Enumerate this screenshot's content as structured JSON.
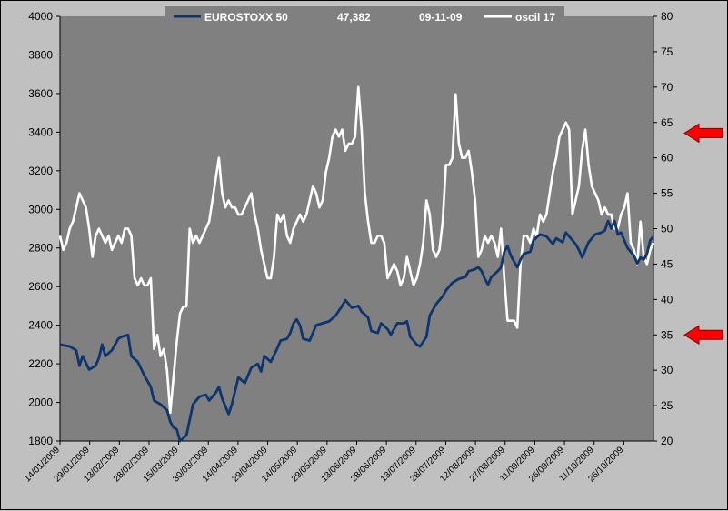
{
  "legend": {
    "series1_label": "EUROSTOXX 50",
    "value": "47,382",
    "date": "09-11-09",
    "series2_label": "oscil 17"
  },
  "colors": {
    "plot_bg": "#808080",
    "page_bg": "#c0c0c0",
    "eurostoxx": "#0d3570",
    "oscil": "#ffffff",
    "arrow": "#ff0000"
  },
  "chart_data": {
    "type": "line",
    "title": "",
    "xlabel": "",
    "ylabel": "",
    "ylim": [
      1800,
      4000
    ],
    "y_ticks": [
      1800,
      2000,
      2200,
      2400,
      2600,
      2800,
      3000,
      3200,
      3400,
      3600,
      3800,
      4000
    ],
    "y2lim": [
      20,
      80
    ],
    "y2_ticks": [
      20,
      25,
      30,
      35,
      40,
      45,
      50,
      55,
      60,
      65,
      70,
      75,
      80
    ],
    "x_tick_labels": [
      "14/01/2009",
      "29/01/2009",
      "13/02/2009",
      "28/02/2009",
      "15/03/2009",
      "30/03/2009",
      "14/04/2009",
      "29/04/2009",
      "14/05/2009",
      "29/05/2009",
      "13/06/2009",
      "28/06/2009",
      "13/07/2009",
      "28/07/2009",
      "12/08/2009",
      "27/08/2009",
      "11/09/2009",
      "26/09/2009",
      "11/10/2009",
      "26/10/2009"
    ],
    "grid": false,
    "legend_position": "top",
    "series": [
      {
        "name": "EUROSTOXX 50",
        "axis": "left",
        "points": [
          [
            0,
            2300
          ],
          [
            3,
            2290
          ],
          [
            5,
            2270
          ],
          [
            6,
            2190
          ],
          [
            7,
            2240
          ],
          [
            9,
            2170
          ],
          [
            11,
            2190
          ],
          [
            12,
            2230
          ],
          [
            13,
            2300
          ],
          [
            14,
            2240
          ],
          [
            16,
            2270
          ],
          [
            18,
            2330
          ],
          [
            19,
            2340
          ],
          [
            21,
            2350
          ],
          [
            22,
            2240
          ],
          [
            24,
            2210
          ],
          [
            26,
            2140
          ],
          [
            28,
            2080
          ],
          [
            29,
            2010
          ],
          [
            31,
            1990
          ],
          [
            33,
            1960
          ],
          [
            34,
            1900
          ],
          [
            35,
            1870
          ],
          [
            36,
            1860
          ],
          [
            37,
            1800
          ],
          [
            39,
            1830
          ],
          [
            41,
            1990
          ],
          [
            43,
            2030
          ],
          [
            45,
            2040
          ],
          [
            46,
            2010
          ],
          [
            48,
            2050
          ],
          [
            49,
            2080
          ],
          [
            50,
            2020
          ],
          [
            52,
            1940
          ],
          [
            53,
            1990
          ],
          [
            55,
            2130
          ],
          [
            57,
            2100
          ],
          [
            59,
            2180
          ],
          [
            61,
            2200
          ],
          [
            62,
            2160
          ],
          [
            63,
            2240
          ],
          [
            65,
            2210
          ],
          [
            67,
            2280
          ],
          [
            68,
            2320
          ],
          [
            70,
            2330
          ],
          [
            71,
            2360
          ],
          [
            72,
            2410
          ],
          [
            73,
            2430
          ],
          [
            74,
            2400
          ],
          [
            75,
            2330
          ],
          [
            77,
            2320
          ],
          [
            79,
            2400
          ],
          [
            81,
            2410
          ],
          [
            83,
            2420
          ],
          [
            85,
            2450
          ],
          [
            87,
            2500
          ],
          [
            88,
            2530
          ],
          [
            90,
            2490
          ],
          [
            92,
            2500
          ],
          [
            93,
            2470
          ],
          [
            95,
            2440
          ],
          [
            96,
            2370
          ],
          [
            98,
            2360
          ],
          [
            99,
            2410
          ],
          [
            101,
            2380
          ],
          [
            102,
            2350
          ],
          [
            104,
            2410
          ],
          [
            106,
            2410
          ],
          [
            107,
            2420
          ],
          [
            108,
            2340
          ],
          [
            110,
            2300
          ],
          [
            111,
            2290
          ],
          [
            113,
            2340
          ],
          [
            114,
            2450
          ],
          [
            116,
            2510
          ],
          [
            118,
            2550
          ],
          [
            119,
            2580
          ],
          [
            121,
            2620
          ],
          [
            123,
            2640
          ],
          [
            125,
            2650
          ],
          [
            126,
            2680
          ],
          [
            128,
            2690
          ],
          [
            129,
            2700
          ],
          [
            130,
            2680
          ],
          [
            131,
            2640
          ],
          [
            132,
            2610
          ],
          [
            133,
            2650
          ],
          [
            135,
            2680
          ],
          [
            136,
            2700
          ],
          [
            137,
            2780
          ],
          [
            138,
            2810
          ],
          [
            139,
            2760
          ],
          [
            141,
            2700
          ],
          [
            142,
            2740
          ],
          [
            143,
            2770
          ],
          [
            145,
            2780
          ],
          [
            146,
            2840
          ],
          [
            148,
            2870
          ],
          [
            150,
            2860
          ],
          [
            152,
            2820
          ],
          [
            153,
            2850
          ],
          [
            155,
            2830
          ],
          [
            156,
            2880
          ],
          [
            157,
            2860
          ],
          [
            159,
            2820
          ],
          [
            160,
            2790
          ],
          [
            161,
            2750
          ],
          [
            163,
            2830
          ],
          [
            165,
            2870
          ],
          [
            167,
            2880
          ],
          [
            168,
            2890
          ],
          [
            169,
            2940
          ],
          [
            170,
            2900
          ],
          [
            171,
            2940
          ],
          [
            172,
            2870
          ],
          [
            173,
            2880
          ],
          [
            175,
            2800
          ],
          [
            176,
            2780
          ],
          [
            177,
            2760
          ],
          [
            178,
            2720
          ],
          [
            179,
            2750
          ],
          [
            180,
            2740
          ],
          [
            181,
            2770
          ],
          [
            182,
            2840
          ],
          [
            183,
            2860
          ]
        ]
      },
      {
        "name": "oscil 17",
        "axis": "right",
        "points": [
          [
            0,
            49
          ],
          [
            1,
            47
          ],
          [
            2,
            48
          ],
          [
            3,
            50
          ],
          [
            4,
            51
          ],
          [
            5,
            53
          ],
          [
            6,
            55
          ],
          [
            7,
            54
          ],
          [
            8,
            53
          ],
          [
            9,
            50
          ],
          [
            10,
            46
          ],
          [
            11,
            49
          ],
          [
            12,
            50
          ],
          [
            13,
            49
          ],
          [
            14,
            48
          ],
          [
            15,
            49
          ],
          [
            16,
            47
          ],
          [
            17,
            48
          ],
          [
            18,
            49
          ],
          [
            19,
            48
          ],
          [
            20,
            50
          ],
          [
            21,
            50
          ],
          [
            22,
            49
          ],
          [
            23,
            43
          ],
          [
            24,
            42
          ],
          [
            25,
            43
          ],
          [
            26,
            42
          ],
          [
            27,
            42
          ],
          [
            28,
            43
          ],
          [
            29,
            33
          ],
          [
            30,
            35
          ],
          [
            31,
            32
          ],
          [
            32,
            33
          ],
          [
            33,
            30
          ],
          [
            34,
            24
          ],
          [
            35,
            29
          ],
          [
            36,
            34
          ],
          [
            37,
            38
          ],
          [
            38,
            39
          ],
          [
            39,
            39
          ],
          [
            40,
            50
          ],
          [
            41,
            48
          ],
          [
            42,
            49
          ],
          [
            43,
            48
          ],
          [
            44,
            49
          ],
          [
            45,
            50
          ],
          [
            46,
            51
          ],
          [
            47,
            54
          ],
          [
            48,
            57
          ],
          [
            49,
            60
          ],
          [
            50,
            55
          ],
          [
            51,
            53
          ],
          [
            52,
            54
          ],
          [
            53,
            53
          ],
          [
            54,
            53
          ],
          [
            55,
            52
          ],
          [
            56,
            52
          ],
          [
            57,
            53
          ],
          [
            58,
            54
          ],
          [
            59,
            55
          ],
          [
            60,
            52
          ],
          [
            61,
            50
          ],
          [
            62,
            47
          ],
          [
            63,
            45
          ],
          [
            64,
            43
          ],
          [
            65,
            43
          ],
          [
            66,
            46
          ],
          [
            67,
            52
          ],
          [
            68,
            51
          ],
          [
            69,
            52
          ],
          [
            70,
            49
          ],
          [
            71,
            48
          ],
          [
            72,
            50
          ],
          [
            73,
            51
          ],
          [
            74,
            52
          ],
          [
            75,
            51
          ],
          [
            76,
            52
          ],
          [
            77,
            54
          ],
          [
            78,
            56
          ],
          [
            79,
            55
          ],
          [
            80,
            53
          ],
          [
            81,
            54
          ],
          [
            82,
            58
          ],
          [
            83,
            60
          ],
          [
            84,
            63
          ],
          [
            85,
            64
          ],
          [
            86,
            63
          ],
          [
            87,
            64
          ],
          [
            88,
            61
          ],
          [
            89,
            62
          ],
          [
            90,
            62
          ],
          [
            91,
            63
          ],
          [
            92,
            70
          ],
          [
            93,
            64
          ],
          [
            94,
            55
          ],
          [
            95,
            51
          ],
          [
            96,
            48
          ],
          [
            97,
            48
          ],
          [
            98,
            49
          ],
          [
            99,
            49
          ],
          [
            100,
            48
          ],
          [
            101,
            43
          ],
          [
            102,
            44
          ],
          [
            103,
            45
          ],
          [
            104,
            44
          ],
          [
            105,
            42
          ],
          [
            106,
            43
          ],
          [
            107,
            46
          ],
          [
            108,
            44
          ],
          [
            109,
            42
          ],
          [
            110,
            43
          ],
          [
            111,
            45
          ],
          [
            112,
            48
          ],
          [
            113,
            54
          ],
          [
            114,
            52
          ],
          [
            115,
            47
          ],
          [
            116,
            46
          ],
          [
            117,
            47
          ],
          [
            118,
            51
          ],
          [
            119,
            59
          ],
          [
            120,
            59
          ],
          [
            121,
            60
          ],
          [
            122,
            69
          ],
          [
            123,
            62
          ],
          [
            124,
            60
          ],
          [
            125,
            60
          ],
          [
            126,
            61
          ],
          [
            127,
            58
          ],
          [
            128,
            54
          ],
          [
            129,
            46
          ],
          [
            130,
            47
          ],
          [
            131,
            49
          ],
          [
            132,
            48
          ],
          [
            133,
            49
          ],
          [
            134,
            48
          ],
          [
            135,
            46
          ],
          [
            136,
            50
          ],
          [
            137,
            43
          ],
          [
            138,
            37
          ],
          [
            139,
            37
          ],
          [
            140,
            37
          ],
          [
            141,
            36
          ],
          [
            142,
            45
          ],
          [
            143,
            49
          ],
          [
            144,
            49
          ],
          [
            145,
            48
          ],
          [
            146,
            50
          ],
          [
            147,
            49
          ],
          [
            148,
            52
          ],
          [
            149,
            51
          ],
          [
            150,
            52
          ],
          [
            151,
            55
          ],
          [
            152,
            58
          ],
          [
            153,
            60
          ],
          [
            154,
            63
          ],
          [
            155,
            64
          ],
          [
            156,
            65
          ],
          [
            157,
            64
          ],
          [
            158,
            52
          ],
          [
            159,
            54
          ],
          [
            160,
            56
          ],
          [
            161,
            61
          ],
          [
            162,
            64
          ],
          [
            163,
            59
          ],
          [
            164,
            56
          ],
          [
            165,
            55
          ],
          [
            166,
            54
          ],
          [
            167,
            52
          ],
          [
            168,
            53
          ],
          [
            169,
            52
          ],
          [
            170,
            52
          ],
          [
            171,
            50
          ],
          [
            172,
            50
          ],
          [
            173,
            52
          ],
          [
            174,
            53
          ],
          [
            175,
            55
          ],
          [
            176,
            48
          ],
          [
            177,
            47
          ],
          [
            178,
            45
          ],
          [
            179,
            51
          ],
          [
            180,
            46
          ],
          [
            181,
            45
          ],
          [
            182,
            47
          ],
          [
            183,
            48
          ]
        ]
      }
    ],
    "annotations": [
      {
        "type": "arrow",
        "axis": "right",
        "y": 63.5,
        "direction": "left"
      },
      {
        "type": "arrow",
        "axis": "right",
        "y": 35,
        "direction": "left"
      }
    ]
  }
}
